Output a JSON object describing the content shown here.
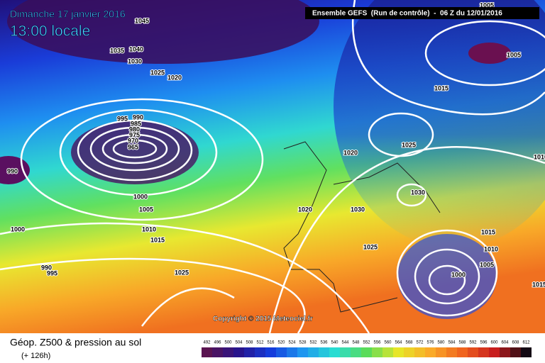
{
  "header": {
    "date": "Dimanche 17 janvier 2016",
    "time": "13:00 locale",
    "run": "Ensemble GEFS  (Run de contrôle)  -  06 Z du 12/01/2016"
  },
  "copyright": "Copyright © 2015 Meteociel.fr",
  "footer": {
    "title": "Géop. Z500 & pression au sol",
    "lead": "(+ 126h)"
  },
  "scale": [
    492,
    496,
    500,
    504,
    508,
    512,
    516,
    520,
    524,
    528,
    532,
    536,
    540,
    544,
    548,
    552,
    556,
    560,
    564,
    568,
    572,
    576,
    580,
    584,
    588,
    592,
    596,
    600,
    604,
    608,
    612
  ],
  "isobars": [
    "1045",
    "1035",
    "1040",
    "1030",
    "1025",
    "1020",
    "995",
    "990",
    "985",
    "980",
    "975",
    "970",
    "965",
    "990",
    "1000",
    "1005",
    "1010",
    "1015",
    "1000",
    "990",
    "995",
    "1025",
    "1020",
    "1020",
    "1030",
    "1025",
    "1030",
    "1025",
    "1015",
    "1005",
    "1015",
    "1010",
    "1005",
    "1000",
    "1015",
    "1010",
    "1005"
  ]
}
